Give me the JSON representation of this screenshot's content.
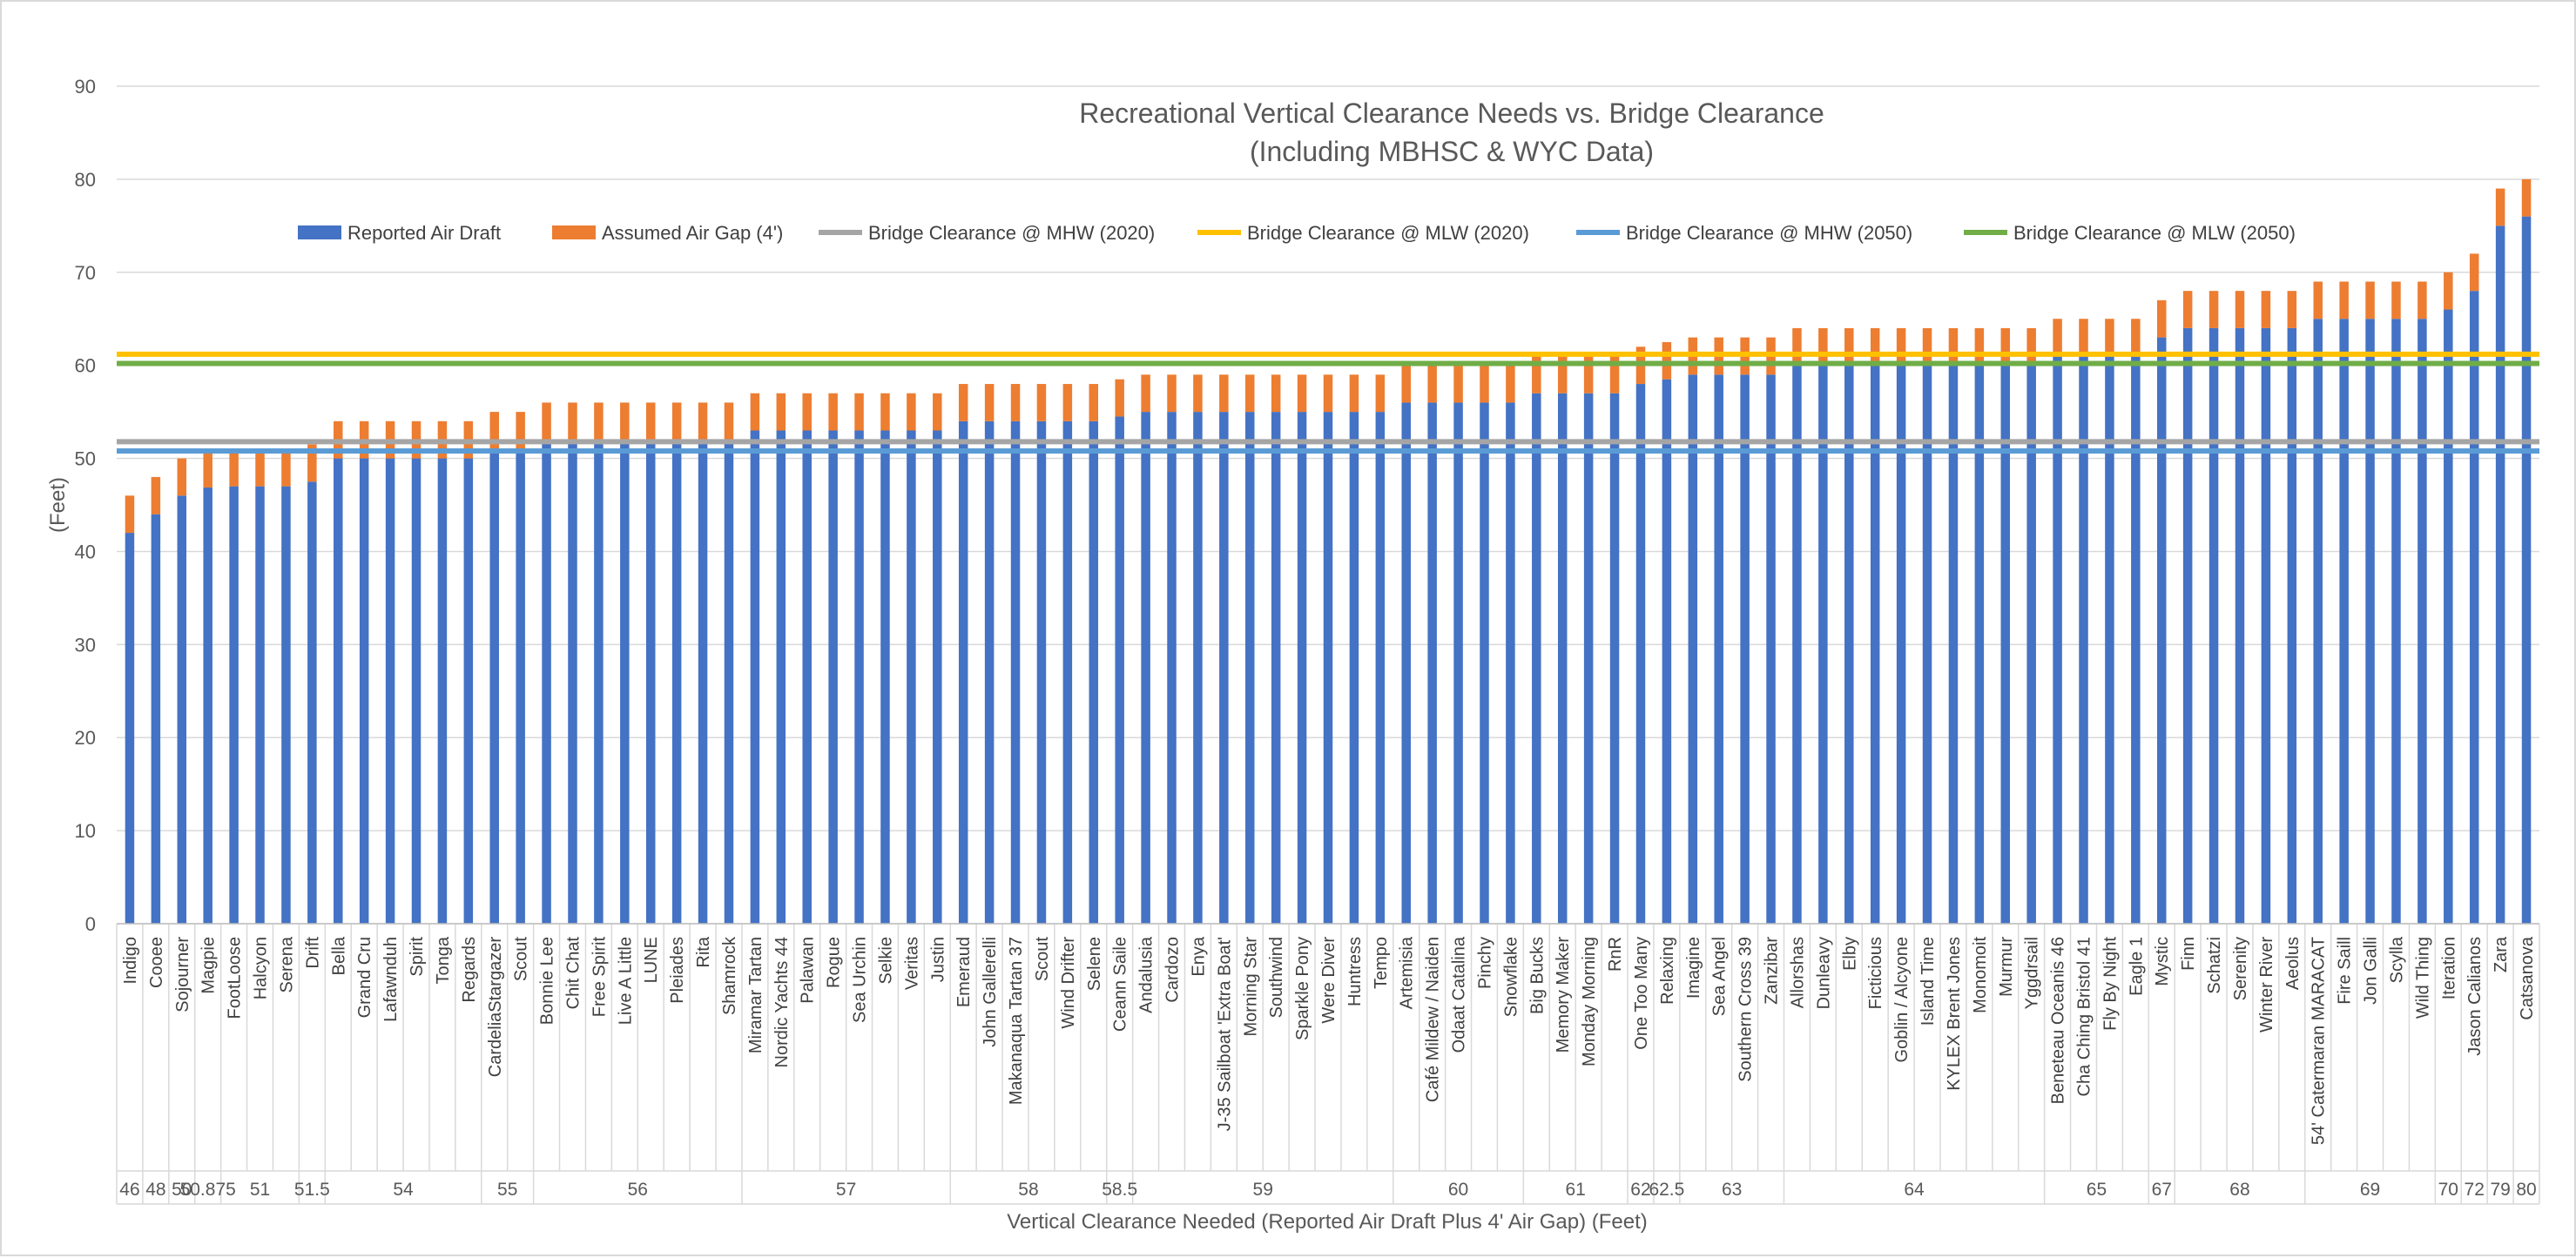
{
  "chart_data": {
    "type": "bar",
    "stacked": true,
    "title": [
      "Recreational Vertical Clearance Needs vs. Bridge Clearance",
      "(Including MBHSC & WYC Data)"
    ],
    "ylabel": "(Feet)",
    "xlabel": "Vertical Clearance Needed (Reported Air Draft Plus 4' Air Gap) (Feet)",
    "ylim": [
      0,
      90
    ],
    "yticks": [
      0,
      10,
      20,
      30,
      40,
      50,
      60,
      70,
      80,
      90
    ],
    "legend_position": "top",
    "grid": true,
    "boats": [
      {
        "name": "Indigo",
        "air_draft": 42
      },
      {
        "name": "Cooee",
        "air_draft": 44
      },
      {
        "name": "Sojourner",
        "air_draft": 46
      },
      {
        "name": "Magpie",
        "air_draft": 46.875
      },
      {
        "name": "FootLoose",
        "air_draft": 47
      },
      {
        "name": "Halcyon",
        "air_draft": 47
      },
      {
        "name": "Serena",
        "air_draft": 47
      },
      {
        "name": "Drift",
        "air_draft": 47.5
      },
      {
        "name": "Bella",
        "air_draft": 50
      },
      {
        "name": "Grand Cru",
        "air_draft": 50
      },
      {
        "name": "Lafawnduh",
        "air_draft": 50
      },
      {
        "name": "Spirit",
        "air_draft": 50
      },
      {
        "name": "Tonga",
        "air_draft": 50
      },
      {
        "name": "Regards",
        "air_draft": 50
      },
      {
        "name": "CardeliaStargazer",
        "air_draft": 51
      },
      {
        "name": "Scout",
        "air_draft": 51
      },
      {
        "name": "Bonnie Lee",
        "air_draft": 52
      },
      {
        "name": "Chit Chat",
        "air_draft": 52
      },
      {
        "name": "Free Spirit",
        "air_draft": 52
      },
      {
        "name": "Live A Little",
        "air_draft": 52
      },
      {
        "name": "LUNE",
        "air_draft": 52
      },
      {
        "name": "Pleiades",
        "air_draft": 52
      },
      {
        "name": "Rita",
        "air_draft": 52
      },
      {
        "name": "Shamrock",
        "air_draft": 52
      },
      {
        "name": "Miramar Tartan",
        "air_draft": 53
      },
      {
        "name": "Nordic Yachts 44",
        "air_draft": 53
      },
      {
        "name": "Palawan",
        "air_draft": 53
      },
      {
        "name": "Rogue",
        "air_draft": 53
      },
      {
        "name": "Sea Urchin",
        "air_draft": 53
      },
      {
        "name": "Selkie",
        "air_draft": 53
      },
      {
        "name": "Veritas",
        "air_draft": 53
      },
      {
        "name": "Justin",
        "air_draft": 53
      },
      {
        "name": "Emeraud",
        "air_draft": 54
      },
      {
        "name": "John Gallerelli",
        "air_draft": 54
      },
      {
        "name": "Makanaqua Tartan 37",
        "air_draft": 54
      },
      {
        "name": "Scout",
        "air_draft": 54
      },
      {
        "name": "Wind Drifter",
        "air_draft": 54
      },
      {
        "name": "Selene",
        "air_draft": 54
      },
      {
        "name": "Ceann Saile",
        "air_draft": 54.5
      },
      {
        "name": "Andalusia",
        "air_draft": 55
      },
      {
        "name": "Cardozo",
        "air_draft": 55
      },
      {
        "name": "Enya",
        "air_draft": 55
      },
      {
        "name": "J-35 Sailboat 'Extra Boat'",
        "air_draft": 55
      },
      {
        "name": "Morning Star",
        "air_draft": 55
      },
      {
        "name": "Southwind",
        "air_draft": 55
      },
      {
        "name": "Sparkle Pony",
        "air_draft": 55
      },
      {
        "name": "Were Diver",
        "air_draft": 55
      },
      {
        "name": "Huntress",
        "air_draft": 55
      },
      {
        "name": "Tempo",
        "air_draft": 55
      },
      {
        "name": "Artemisia",
        "air_draft": 56
      },
      {
        "name": "Café Mildew / Naiden",
        "air_draft": 56
      },
      {
        "name": "Odaat Catalina",
        "air_draft": 56
      },
      {
        "name": "Pinchy",
        "air_draft": 56
      },
      {
        "name": "Snowflake",
        "air_draft": 56
      },
      {
        "name": "Big Bucks",
        "air_draft": 57
      },
      {
        "name": "Memory Maker",
        "air_draft": 57
      },
      {
        "name": "Monday Morning",
        "air_draft": 57
      },
      {
        "name": "RnR",
        "air_draft": 57
      },
      {
        "name": "One Too Many",
        "air_draft": 58
      },
      {
        "name": "Relaxing",
        "air_draft": 58.5
      },
      {
        "name": "Imagine",
        "air_draft": 59
      },
      {
        "name": "Sea Angel",
        "air_draft": 59
      },
      {
        "name": "Southern Cross 39",
        "air_draft": 59
      },
      {
        "name": "Zanzibar",
        "air_draft": 59
      },
      {
        "name": "Allorshas",
        "air_draft": 60
      },
      {
        "name": "Dunleavy",
        "air_draft": 60
      },
      {
        "name": "Elby",
        "air_draft": 60
      },
      {
        "name": "Ficticious",
        "air_draft": 60
      },
      {
        "name": "Goblin / Alcyone",
        "air_draft": 60
      },
      {
        "name": "Island Time",
        "air_draft": 60
      },
      {
        "name": "KYLEX Brent Jones",
        "air_draft": 60
      },
      {
        "name": "Monomoit",
        "air_draft": 60
      },
      {
        "name": "Murmur",
        "air_draft": 60
      },
      {
        "name": "Yggdrsail",
        "air_draft": 60
      },
      {
        "name": "Beneteau Oceanis 46",
        "air_draft": 61
      },
      {
        "name": "Cha Ching Bristol 41",
        "air_draft": 61
      },
      {
        "name": "Fly By Night",
        "air_draft": 61
      },
      {
        "name": "Eagle 1",
        "air_draft": 61
      },
      {
        "name": "Mystic",
        "air_draft": 63
      },
      {
        "name": "Finn",
        "air_draft": 64
      },
      {
        "name": "Schatzi",
        "air_draft": 64
      },
      {
        "name": "Serenity",
        "air_draft": 64
      },
      {
        "name": "Winter River",
        "air_draft": 64
      },
      {
        "name": "Aeolus",
        "air_draft": 64
      },
      {
        "name": "54' Catermaran MARACAT",
        "air_draft": 65
      },
      {
        "name": "Fire Saill",
        "air_draft": 65
      },
      {
        "name": "Jon Galli",
        "air_draft": 65
      },
      {
        "name": "Scylla",
        "air_draft": 65
      },
      {
        "name": "Wild Thing",
        "air_draft": 65
      },
      {
        "name": "Iteration",
        "air_draft": 66
      },
      {
        "name": "Jason Calianos",
        "air_draft": 68
      },
      {
        "name": "Zara",
        "air_draft": 75
      },
      {
        "name": "Catsanova",
        "air_draft": 76
      }
    ],
    "air_gap": 4,
    "groups": [
      {
        "label": "46",
        "count": 1
      },
      {
        "label": "48",
        "count": 1
      },
      {
        "label": "50",
        "count": 1
      },
      {
        "label": "50.875",
        "count": 1
      },
      {
        "label": "51",
        "count": 3
      },
      {
        "label": "51.5",
        "count": 1
      },
      {
        "label": "54",
        "count": 6
      },
      {
        "label": "55",
        "count": 2
      },
      {
        "label": "56",
        "count": 8
      },
      {
        "label": "57",
        "count": 8
      },
      {
        "label": "58",
        "count": 6
      },
      {
        "label": "58.5",
        "count": 1
      },
      {
        "label": "59",
        "count": 10
      },
      {
        "label": "60",
        "count": 5
      },
      {
        "label": "61",
        "count": 4
      },
      {
        "label": "62",
        "count": 1
      },
      {
        "label": "62.5",
        "count": 1
      },
      {
        "label": "63",
        "count": 4
      },
      {
        "label": "64",
        "count": 10
      },
      {
        "label": "65",
        "count": 4
      },
      {
        "label": "67",
        "count": 1
      },
      {
        "label": "68",
        "count": 5
      },
      {
        "label": "69",
        "count": 5
      },
      {
        "label": "70",
        "count": 1
      },
      {
        "label": "72",
        "count": 1
      },
      {
        "label": "79",
        "count": 1
      },
      {
        "label": "80",
        "count": 1
      }
    ],
    "series": [
      {
        "name": "Reported Air Draft",
        "kind": "bar",
        "color": "#4472c4"
      },
      {
        "name": "Assumed Air Gap (4')",
        "kind": "bar",
        "color": "#ed7d31"
      },
      {
        "name": "Bridge Clearance @ MHW (2020)",
        "kind": "line",
        "value": 51.8,
        "color": "#a5a5a5"
      },
      {
        "name": "Bridge Clearance @ MLW (2020)",
        "kind": "line",
        "value": 61.2,
        "color": "#ffc000"
      },
      {
        "name": "Bridge Clearance @ MHW (2050)",
        "kind": "line",
        "value": 50.8,
        "color": "#5b9bd5"
      },
      {
        "name": "Bridge Clearance @ MLW (2050)",
        "kind": "line",
        "value": 60.2,
        "color": "#70ad47"
      }
    ]
  }
}
